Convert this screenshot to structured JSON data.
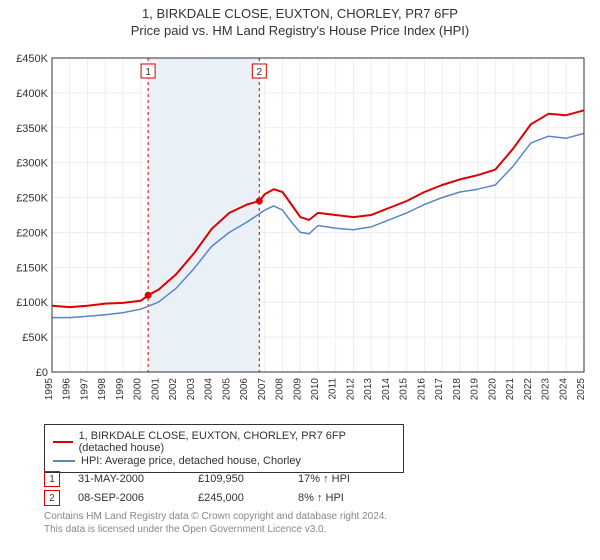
{
  "titles": {
    "line1": "1, BIRKDALE CLOSE, EUXTON, CHORLEY, PR7 6FP",
    "line2": "Price paid vs. HM Land Registry's House Price Index (HPI)"
  },
  "chart": {
    "type": "line",
    "background_color": "#ffffff",
    "grid_color": "#eeeeee",
    "plot_bg_color": "#ffffff",
    "axis_color": "#333333",
    "shaded_x_range": [
      2000.42,
      2006.69
    ],
    "shaded_color": "#eaf0f7",
    "xlim": [
      1995,
      2025
    ],
    "ylim": [
      0,
      450000
    ],
    "ytick_step": 50000,
    "ytick_labels": [
      "£0",
      "£50K",
      "£100K",
      "£150K",
      "£200K",
      "£250K",
      "£300K",
      "£350K",
      "£400K",
      "£450K"
    ],
    "xticks": [
      1995,
      1996,
      1997,
      1998,
      1999,
      2000,
      2001,
      2002,
      2003,
      2004,
      2005,
      2006,
      2007,
      2008,
      2009,
      2010,
      2011,
      2012,
      2013,
      2014,
      2015,
      2016,
      2017,
      2018,
      2019,
      2020,
      2021,
      2022,
      2023,
      2024,
      2025
    ],
    "series": [
      {
        "name": "property",
        "color": "#dd0000",
        "line_width": 2,
        "data": [
          [
            1995,
            95000
          ],
          [
            1996,
            93000
          ],
          [
            1997,
            95000
          ],
          [
            1998,
            98000
          ],
          [
            1999,
            99000
          ],
          [
            2000,
            102000
          ],
          [
            2000.42,
            109950
          ],
          [
            2001,
            118000
          ],
          [
            2002,
            140000
          ],
          [
            2003,
            170000
          ],
          [
            2004,
            205000
          ],
          [
            2005,
            228000
          ],
          [
            2006,
            240000
          ],
          [
            2006.69,
            245000
          ],
          [
            2007,
            255000
          ],
          [
            2007.5,
            262000
          ],
          [
            2008,
            258000
          ],
          [
            2008.5,
            240000
          ],
          [
            2009,
            222000
          ],
          [
            2009.5,
            218000
          ],
          [
            2010,
            228000
          ],
          [
            2011,
            225000
          ],
          [
            2012,
            222000
          ],
          [
            2013,
            225000
          ],
          [
            2014,
            235000
          ],
          [
            2015,
            245000
          ],
          [
            2016,
            258000
          ],
          [
            2017,
            268000
          ],
          [
            2018,
            276000
          ],
          [
            2019,
            282000
          ],
          [
            2020,
            290000
          ],
          [
            2021,
            320000
          ],
          [
            2022,
            355000
          ],
          [
            2023,
            370000
          ],
          [
            2024,
            368000
          ],
          [
            2025,
            375000
          ]
        ]
      },
      {
        "name": "hpi",
        "color": "#5b86c4",
        "line_width": 1.5,
        "data": [
          [
            1995,
            78000
          ],
          [
            1996,
            78000
          ],
          [
            1997,
            80000
          ],
          [
            1998,
            82000
          ],
          [
            1999,
            85000
          ],
          [
            2000,
            90000
          ],
          [
            2001,
            100000
          ],
          [
            2002,
            120000
          ],
          [
            2003,
            148000
          ],
          [
            2004,
            180000
          ],
          [
            2005,
            200000
          ],
          [
            2006,
            215000
          ],
          [
            2007,
            232000
          ],
          [
            2007.5,
            238000
          ],
          [
            2008,
            232000
          ],
          [
            2008.5,
            215000
          ],
          [
            2009,
            200000
          ],
          [
            2009.5,
            198000
          ],
          [
            2010,
            210000
          ],
          [
            2011,
            206000
          ],
          [
            2012,
            204000
          ],
          [
            2013,
            208000
          ],
          [
            2014,
            218000
          ],
          [
            2015,
            228000
          ],
          [
            2016,
            240000
          ],
          [
            2017,
            250000
          ],
          [
            2018,
            258000
          ],
          [
            2019,
            262000
          ],
          [
            2020,
            268000
          ],
          [
            2021,
            295000
          ],
          [
            2022,
            328000
          ],
          [
            2023,
            338000
          ],
          [
            2024,
            335000
          ],
          [
            2025,
            342000
          ]
        ]
      }
    ],
    "event_markers": [
      {
        "label": "1",
        "x": 2000.42,
        "y": 109950,
        "line_color": "#dd0000",
        "dash": "3,3"
      },
      {
        "label": "2",
        "x": 2006.69,
        "y": 245000,
        "line_color": "#dd0000",
        "dash": "3,3"
      }
    ]
  },
  "legend": {
    "series1": {
      "label": "1, BIRKDALE CLOSE, EUXTON, CHORLEY, PR7 6FP (detached house)",
      "color": "#dd0000"
    },
    "series2": {
      "label": "HPI: Average price, detached house, Chorley",
      "color": "#5b86c4"
    }
  },
  "events_table": {
    "rows": [
      {
        "badge": "1",
        "date": "31-MAY-2000",
        "price": "£109,950",
        "pct": "17% ↑ HPI"
      },
      {
        "badge": "2",
        "date": "08-SEP-2006",
        "price": "£245,000",
        "pct": "8% ↑ HPI"
      }
    ]
  },
  "footer": {
    "line1": "Contains HM Land Registry data © Crown copyright and database right 2024.",
    "line2": "This data is licensed under the Open Government Licence v3.0."
  }
}
